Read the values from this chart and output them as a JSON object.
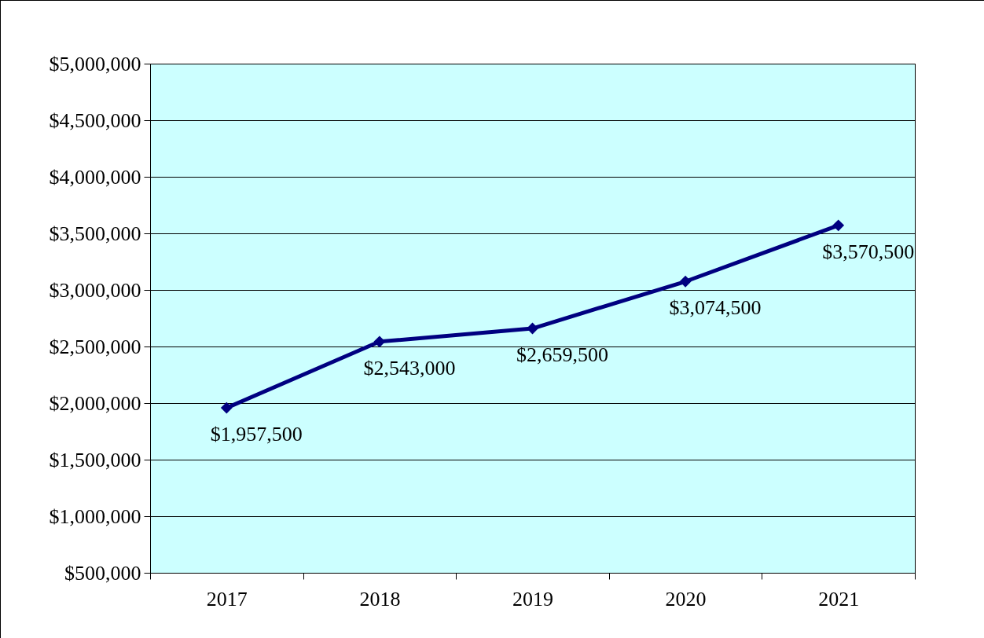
{
  "chart_data": {
    "type": "line",
    "categories": [
      "2017",
      "2018",
      "2019",
      "2020",
      "2021"
    ],
    "series": [
      {
        "color": "#000080",
        "values": [
          1957500,
          2543000,
          2659500,
          3074500,
          3570500
        ],
        "value_labels": [
          "$1,957,500",
          "$2,543,000",
          "$2,659,500",
          "$3,074,500",
          "$3,570,500"
        ]
      }
    ],
    "ylim": [
      500000,
      5000000
    ],
    "yticks": [
      {
        "value": 500000,
        "label": "$500,000"
      },
      {
        "value": 1000000,
        "label": "$1,000,000"
      },
      {
        "value": 1500000,
        "label": "$1,500,000"
      },
      {
        "value": 2000000,
        "label": "$2,000,000"
      },
      {
        "value": 2500000,
        "label": "$2,500,000"
      },
      {
        "value": 3000000,
        "label": "$3,000,000"
      },
      {
        "value": 3500000,
        "label": "$3,500,000"
      },
      {
        "value": 4000000,
        "label": "$4,000,000"
      },
      {
        "value": 4500000,
        "label": "$4,500,000"
      },
      {
        "value": 5000000,
        "label": "$5,000,000"
      }
    ],
    "grid": "y",
    "marker": "diamond",
    "line_style": "solid"
  }
}
